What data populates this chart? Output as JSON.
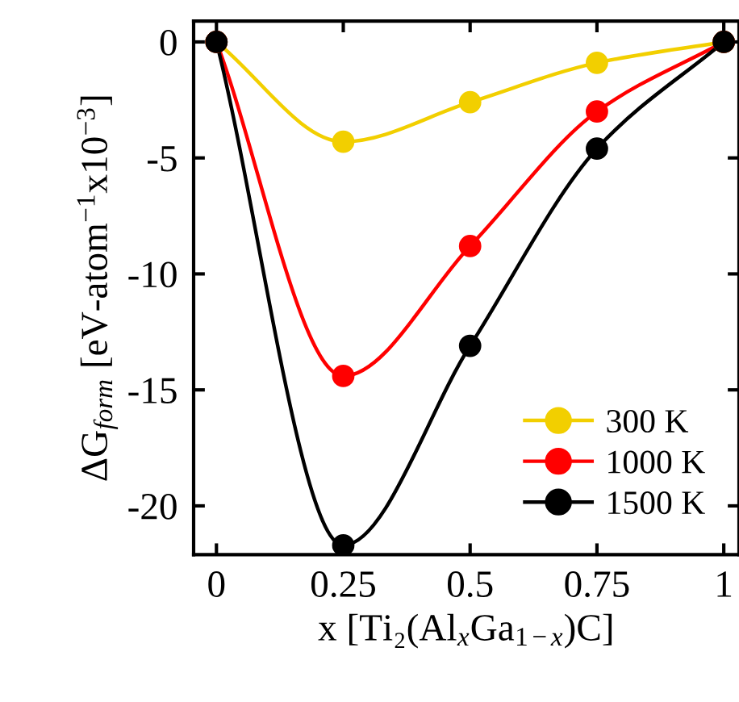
{
  "chart_data": {
    "type": "line",
    "xlabel": "x [Ti₂(Al$_{x}$Ga$_{1−x}$)C]",
    "ylabel": "ΔG$_{form}$ [eV-atom$^{−1}$x10$^{−3}$]",
    "x": [
      0,
      0.25,
      0.5,
      0.75,
      1
    ],
    "series": [
      {
        "name": "300 K",
        "color": "#f2cf00",
        "values": [
          0,
          -4.3,
          -2.6,
          -0.9,
          0
        ]
      },
      {
        "name": "1000 K",
        "color": "#ff0000",
        "values": [
          0,
          -14.4,
          -8.8,
          -3.0,
          0
        ]
      },
      {
        "name": "1500 K",
        "color": "#000000",
        "values": [
          0,
          -21.7,
          -13.1,
          -4.6,
          0
        ]
      }
    ],
    "xlim": [
      -0.045,
      1.03
    ],
    "ylim": [
      -22.1,
      0.9
    ],
    "xticks": [
      0,
      0.25,
      0.5,
      0.75,
      1
    ],
    "yticks": [
      0,
      -5,
      -10,
      -15,
      -20
    ],
    "marker": "circle",
    "line_style": "solid",
    "grid": false,
    "legend": "bottom right"
  }
}
